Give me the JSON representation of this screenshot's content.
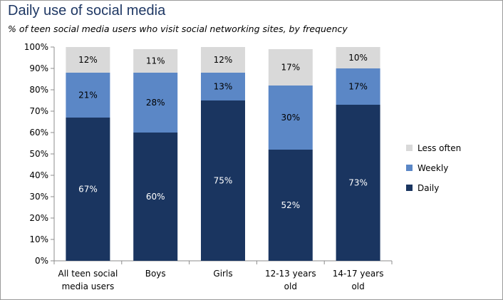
{
  "chart_data": {
    "type": "bar",
    "stacked": true,
    "title": "Daily use of social media",
    "subtitle": "% of teen social media users who visit social networking sites, by frequency",
    "categories": [
      [
        "All teen social",
        "media users"
      ],
      [
        "Boys"
      ],
      [
        "Girls"
      ],
      [
        "12-13 years",
        "old"
      ],
      [
        "14-17 years",
        "old"
      ]
    ],
    "series": [
      {
        "name": "Daily",
        "color": "#1a3560",
        "label_color": "#ffffff",
        "values": [
          67,
          60,
          75,
          52,
          73
        ]
      },
      {
        "name": "Weekly",
        "color": "#5b87c6",
        "label_color": "#000000",
        "values": [
          21,
          28,
          13,
          30,
          17
        ]
      },
      {
        "name": "Less often",
        "color": "#d9d9d9",
        "label_color": "#000000",
        "values": [
          12,
          11,
          12,
          17,
          10
        ]
      }
    ],
    "data_labels": [
      [
        "67%",
        "60%",
        "75%",
        "52%",
        "73%"
      ],
      [
        "21%",
        "28%",
        "13%",
        "30%",
        "17%"
      ],
      [
        "12%",
        "11%",
        "12%",
        "17%",
        "10%"
      ]
    ],
    "ylim": [
      0,
      100
    ],
    "yticks": [
      0,
      10,
      20,
      30,
      40,
      50,
      60,
      70,
      80,
      90,
      100
    ],
    "ytick_labels": [
      "0%",
      "10%",
      "20%",
      "30%",
      "40%",
      "50%",
      "60%",
      "70%",
      "80%",
      "90%",
      "100%"
    ],
    "grid": false,
    "legend": {
      "placement": "right",
      "order": [
        "Less often",
        "Weekly",
        "Daily"
      ]
    }
  }
}
